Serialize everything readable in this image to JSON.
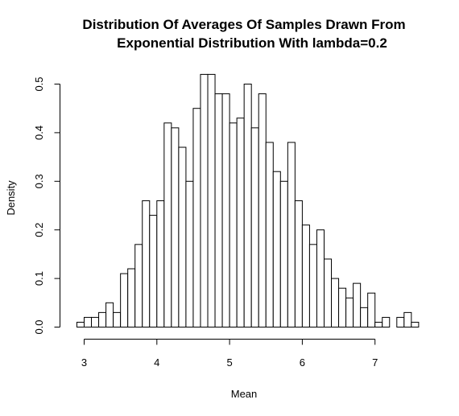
{
  "chart_data": {
    "type": "bar",
    "title_line1": "Distribution Of Averages Of Samples Drawn From",
    "title_line2": "Exponential Distribution With lambda=0.2",
    "xlabel": "Mean",
    "ylabel": "Density",
    "xlim": [
      2.9,
      7.5
    ],
    "ylim": [
      0,
      0.5
    ],
    "bin_start": 2.9,
    "bin_width": 0.1,
    "x_ticks": [
      3,
      4,
      5,
      6,
      7
    ],
    "y_ticks": [
      0.0,
      0.1,
      0.2,
      0.3,
      0.4,
      0.5
    ],
    "y_tick_labels": [
      "0.0",
      "0.1",
      "0.2",
      "0.3",
      "0.4",
      "0.5"
    ],
    "values": [
      0.01,
      0.02,
      0.02,
      0.03,
      0.05,
      0.03,
      0.11,
      0.12,
      0.17,
      0.26,
      0.23,
      0.26,
      0.42,
      0.41,
      0.37,
      0.3,
      0.45,
      0.52,
      0.52,
      0.48,
      0.48,
      0.42,
      0.43,
      0.5,
      0.41,
      0.48,
      0.38,
      0.32,
      0.3,
      0.38,
      0.26,
      0.21,
      0.17,
      0.2,
      0.14,
      0.1,
      0.08,
      0.06,
      0.09,
      0.04,
      0.07,
      0.01,
      0.02,
      0.0,
      0.02,
      0.03,
      0.01
    ],
    "grid": false
  }
}
